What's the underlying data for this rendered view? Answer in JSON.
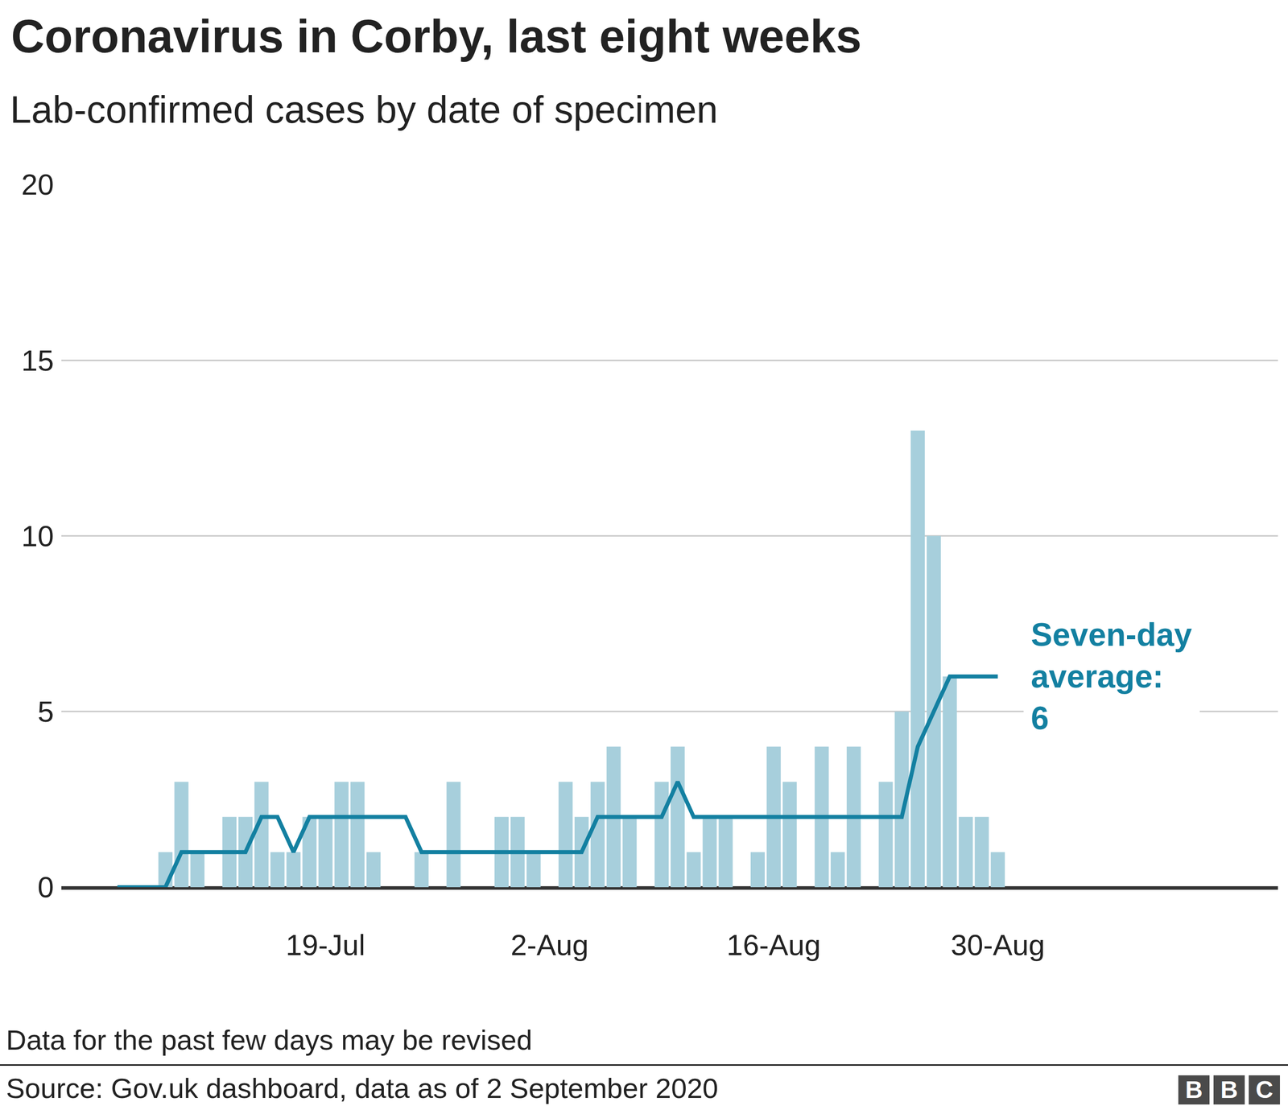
{
  "chart_data": {
    "type": "bar",
    "title": "Coronavirus in Corby, last eight weeks",
    "subtitle": "Lab-confirmed cases by date of specimen",
    "categories": [
      null,
      null,
      null,
      null,
      null,
      null,
      null,
      null,
      null,
      null,
      null,
      null,
      null,
      "19-Jul",
      null,
      null,
      null,
      null,
      null,
      null,
      null,
      null,
      null,
      null,
      null,
      null,
      null,
      "2-Aug",
      null,
      null,
      null,
      null,
      null,
      null,
      null,
      null,
      null,
      null,
      null,
      null,
      null,
      "16-Aug",
      null,
      null,
      null,
      null,
      null,
      null,
      null,
      null,
      null,
      null,
      null,
      null,
      null,
      "30-Aug"
    ],
    "series": [
      {
        "type": "bar",
        "color": "#a7cfdc",
        "values": [
          0,
          0,
          0,
          1,
          3,
          1,
          0,
          2,
          2,
          3,
          1,
          1,
          2,
          2,
          3,
          3,
          1,
          0,
          0,
          1,
          0,
          3,
          0,
          0,
          2,
          2,
          1,
          0,
          3,
          2,
          3,
          4,
          2,
          0,
          3,
          4,
          1,
          2,
          2,
          0,
          1,
          4,
          3,
          0,
          4,
          1,
          4,
          0,
          3,
          5,
          13,
          10,
          6,
          2,
          2,
          1
        ]
      },
      {
        "type": "line",
        "color": "#1380a1",
        "values": [
          0,
          0,
          0,
          0,
          1,
          1,
          1,
          1,
          1,
          2,
          2,
          1,
          2,
          2,
          2,
          2,
          2,
          2,
          2,
          1,
          1,
          1,
          1,
          1,
          1,
          1,
          1,
          1,
          1,
          1,
          2,
          2,
          2,
          2,
          2,
          3,
          2,
          2,
          2,
          2,
          2,
          2,
          2,
          2,
          2,
          2,
          2,
          2,
          2,
          2,
          4,
          5,
          6,
          6,
          6,
          6
        ]
      }
    ],
    "ylim": [
      0,
      20
    ],
    "yticks": [
      0,
      5,
      10,
      15,
      20
    ],
    "grid": true,
    "annotation": [
      "Seven-day",
      "average:",
      "6"
    ],
    "note": "Data for the past few days may be revised",
    "source": "Source: Gov.uk dashboard, data as of 2 September 2020",
    "logo": "BBC"
  }
}
